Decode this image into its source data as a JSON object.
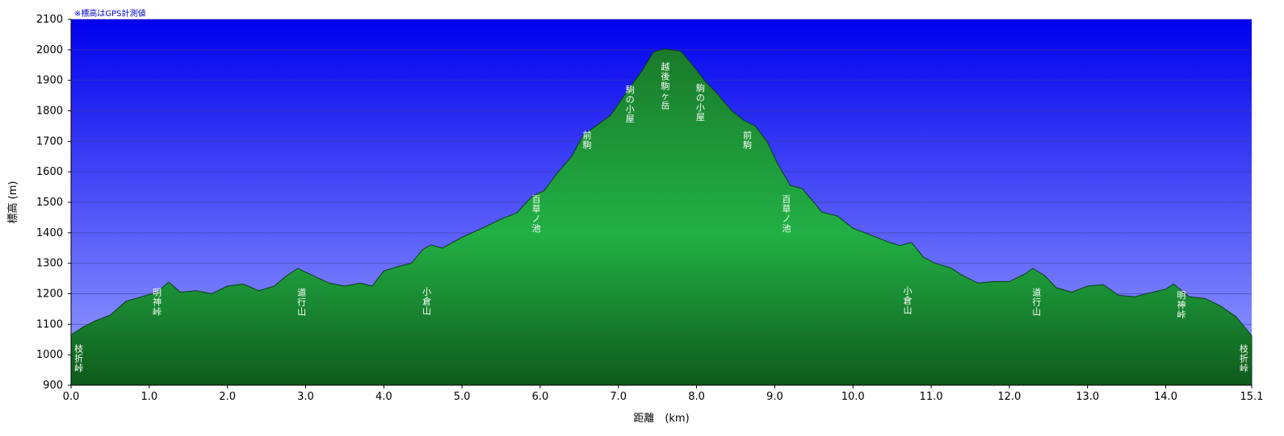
{
  "note": "※標高はGPS計測値",
  "chart_data": {
    "type": "area",
    "xlabel": "距離　(km)",
    "ylabel": "標高 (m)",
    "xlim": [
      0,
      15.1
    ],
    "ylim": [
      900,
      2100
    ],
    "x_ticks": [
      "0.0",
      "1.0",
      "2.0",
      "3.0",
      "4.0",
      "5.0",
      "6.0",
      "7.0",
      "8.0",
      "9.0",
      "10.0",
      "11.0",
      "12.0",
      "13.0",
      "14.0",
      "15.1"
    ],
    "x_tick_values": [
      0,
      1,
      2,
      3,
      4,
      5,
      6,
      7,
      8,
      9,
      10,
      11,
      12,
      13,
      14,
      15.1
    ],
    "y_ticks": [
      900,
      1000,
      1100,
      1200,
      1300,
      1400,
      1500,
      1600,
      1700,
      1800,
      1900,
      2000,
      2100
    ],
    "grid": true,
    "profile": [
      [
        0,
        1065
      ],
      [
        0.15,
        1090
      ],
      [
        0.3,
        1110
      ],
      [
        0.5,
        1130
      ],
      [
        0.7,
        1175
      ],
      [
        0.9,
        1190
      ],
      [
        1.1,
        1205
      ],
      [
        1.25,
        1238
      ],
      [
        1.4,
        1205
      ],
      [
        1.6,
        1210
      ],
      [
        1.8,
        1200
      ],
      [
        2.0,
        1225
      ],
      [
        2.2,
        1232
      ],
      [
        2.4,
        1210
      ],
      [
        2.6,
        1225
      ],
      [
        2.75,
        1258
      ],
      [
        2.9,
        1283
      ],
      [
        3.05,
        1265
      ],
      [
        3.3,
        1235
      ],
      [
        3.5,
        1225
      ],
      [
        3.7,
        1235
      ],
      [
        3.85,
        1225
      ],
      [
        4.0,
        1275
      ],
      [
        4.2,
        1290
      ],
      [
        4.35,
        1300
      ],
      [
        4.5,
        1345
      ],
      [
        4.6,
        1360
      ],
      [
        4.75,
        1350
      ],
      [
        5.0,
        1385
      ],
      [
        5.3,
        1420
      ],
      [
        5.5,
        1445
      ],
      [
        5.7,
        1465
      ],
      [
        5.9,
        1520
      ],
      [
        6.05,
        1538
      ],
      [
        6.2,
        1590
      ],
      [
        6.4,
        1650
      ],
      [
        6.55,
        1720
      ],
      [
        6.7,
        1748
      ],
      [
        6.9,
        1785
      ],
      [
        7.1,
        1860
      ],
      [
        7.3,
        1930
      ],
      [
        7.45,
        1993
      ],
      [
        7.6,
        2003
      ],
      [
        7.8,
        1995
      ],
      [
        7.95,
        1950
      ],
      [
        8.1,
        1900
      ],
      [
        8.25,
        1860
      ],
      [
        8.45,
        1800
      ],
      [
        8.6,
        1770
      ],
      [
        8.75,
        1750
      ],
      [
        8.9,
        1700
      ],
      [
        9.05,
        1620
      ],
      [
        9.2,
        1555
      ],
      [
        9.35,
        1545
      ],
      [
        9.5,
        1500
      ],
      [
        9.6,
        1468
      ],
      [
        9.8,
        1455
      ],
      [
        10.0,
        1415
      ],
      [
        10.2,
        1395
      ],
      [
        10.45,
        1370
      ],
      [
        10.6,
        1358
      ],
      [
        10.75,
        1368
      ],
      [
        10.9,
        1320
      ],
      [
        11.05,
        1300
      ],
      [
        11.25,
        1285
      ],
      [
        11.4,
        1260
      ],
      [
        11.6,
        1235
      ],
      [
        11.8,
        1240
      ],
      [
        12.0,
        1240
      ],
      [
        12.2,
        1265
      ],
      [
        12.3,
        1283
      ],
      [
        12.45,
        1260
      ],
      [
        12.6,
        1220
      ],
      [
        12.8,
        1205
      ],
      [
        13.0,
        1225
      ],
      [
        13.2,
        1230
      ],
      [
        13.4,
        1195
      ],
      [
        13.6,
        1190
      ],
      [
        13.75,
        1200
      ],
      [
        14.0,
        1215
      ],
      [
        14.1,
        1232
      ],
      [
        14.3,
        1190
      ],
      [
        14.5,
        1185
      ],
      [
        14.7,
        1160
      ],
      [
        14.9,
        1125
      ],
      [
        15.1,
        1062
      ]
    ],
    "annotations": [
      {
        "text": "枝折峠",
        "x": 0.1,
        "y": 1010
      },
      {
        "text": "明神峠",
        "x": 1.1,
        "y": 1195
      },
      {
        "text": "道行山",
        "x": 2.95,
        "y": 1195
      },
      {
        "text": "小倉山",
        "x": 4.55,
        "y": 1197
      },
      {
        "text": "百草ノ池",
        "x": 5.95,
        "y": 1500
      },
      {
        "text": "前駒",
        "x": 6.6,
        "y": 1710
      },
      {
        "text": "駒の小屋",
        "x": 7.15,
        "y": 1860
      },
      {
        "text": "越後駒ヶ岳",
        "x": 7.6,
        "y": 1935
      },
      {
        "text": "駒の小屋",
        "x": 8.05,
        "y": 1865
      },
      {
        "text": "前駒",
        "x": 8.65,
        "y": 1710
      },
      {
        "text": "百草ノ池",
        "x": 9.15,
        "y": 1500
      },
      {
        "text": "小倉山",
        "x": 10.7,
        "y": 1200
      },
      {
        "text": "道行山",
        "x": 12.35,
        "y": 1195
      },
      {
        "text": "明神峠",
        "x": 14.2,
        "y": 1185
      },
      {
        "text": "枝折峠",
        "x": 15.0,
        "y": 1010
      }
    ],
    "colors": {
      "sky_top": "#0000ee",
      "sky_bottom": "#9aa2ff",
      "ground_top": "#1a7a2a",
      "ground_bottom": "#0f5a1c",
      "ground_mid": "#22b045"
    }
  }
}
